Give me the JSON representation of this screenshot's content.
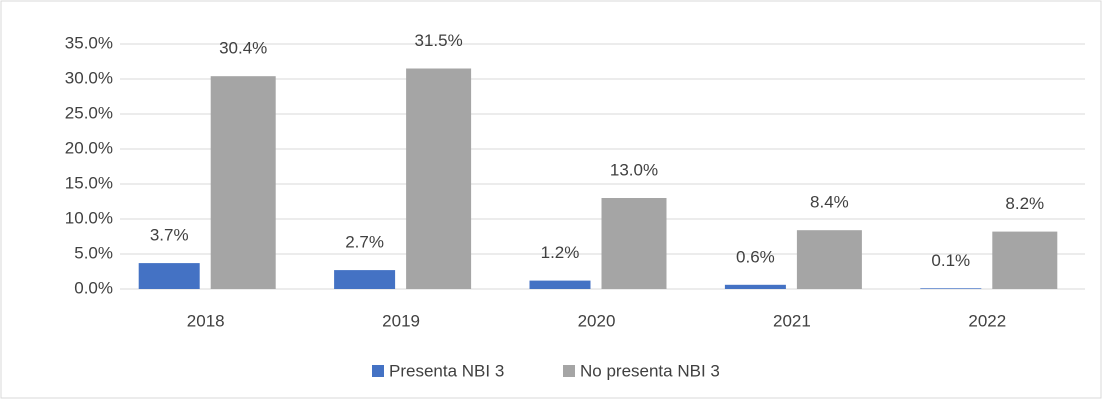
{
  "chart_data": {
    "type": "bar",
    "categories": [
      "2018",
      "2019",
      "2020",
      "2021",
      "2022"
    ],
    "series": [
      {
        "name": "Presenta NBI 3",
        "color": "#4472c4",
        "values": [
          3.7,
          2.7,
          1.2,
          0.6,
          0.1
        ],
        "value_labels": [
          "3.7%",
          "2.7%",
          "1.2%",
          "0.6%",
          "0.1%"
        ]
      },
      {
        "name": "No presenta NBI 3",
        "color": "#a5a5a5",
        "values": [
          30.4,
          31.5,
          13.0,
          8.4,
          8.2
        ],
        "value_labels": [
          "30.4%",
          "31.5%",
          "13.0%",
          "8.4%",
          "8.2%"
        ]
      }
    ],
    "ylim": [
      0,
      35
    ],
    "yticks": [
      {
        "value": 0,
        "label": "0.0%"
      },
      {
        "value": 5,
        "label": "5.0%"
      },
      {
        "value": 10,
        "label": "10.0%"
      },
      {
        "value": 15,
        "label": "15.0%"
      },
      {
        "value": 20,
        "label": "20.0%"
      },
      {
        "value": 25,
        "label": "25.0%"
      },
      {
        "value": 30,
        "label": "30.0%"
      },
      {
        "value": 35,
        "label": "35.0%"
      }
    ],
    "grid": true,
    "legend": "bottom"
  }
}
